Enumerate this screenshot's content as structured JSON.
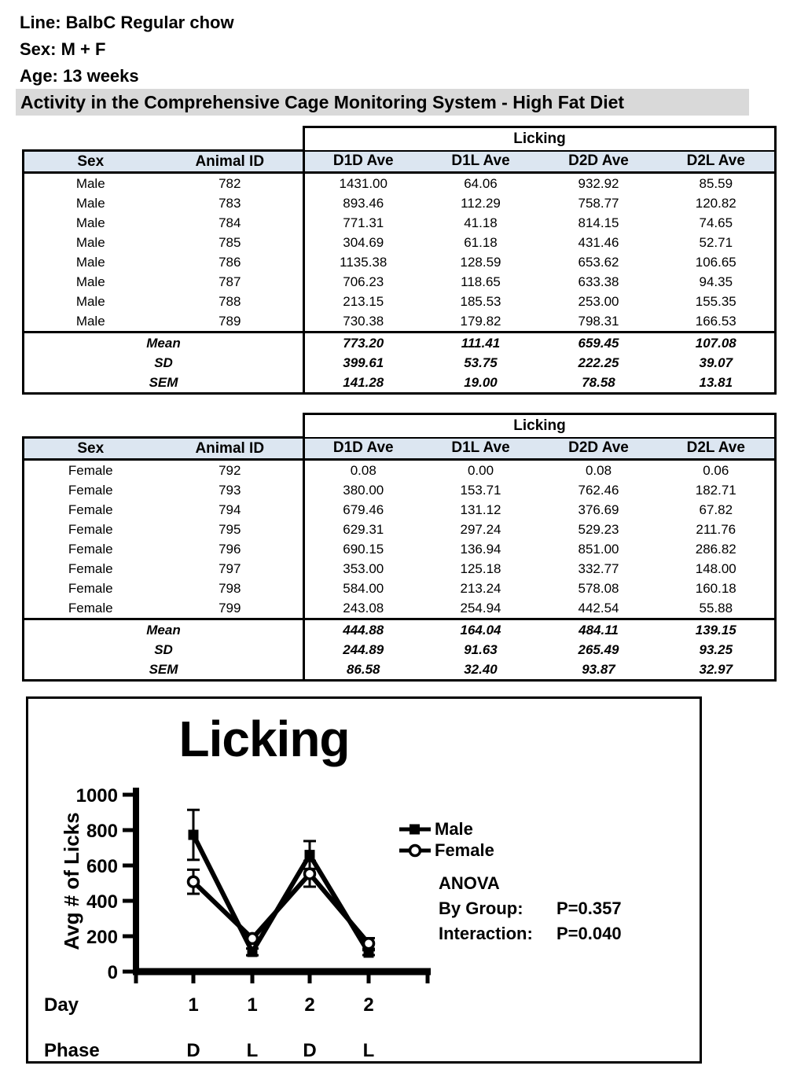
{
  "page": {
    "line_info": "Line: BalbC Regular chow",
    "sex_info": "Sex: M + F",
    "age_info": "Age: 13 weeks",
    "banner": "Activity in the Comprehensive Cage Monitoring System - High Fat Diet"
  },
  "colors": {
    "table_header_bg": "#dce6f1",
    "banner_bg": "#d9d9d9",
    "ink": "#000000"
  },
  "tables": [
    {
      "group_header": "Licking",
      "columns": [
        "Sex",
        "Animal ID",
        "D1D Ave",
        "D1L Ave",
        "D2D Ave",
        "D2L Ave"
      ],
      "rows": [
        [
          "Male",
          "782",
          "1431.00",
          "64.06",
          "932.92",
          "85.59"
        ],
        [
          "Male",
          "783",
          "893.46",
          "112.29",
          "758.77",
          "120.82"
        ],
        [
          "Male",
          "784",
          "771.31",
          "41.18",
          "814.15",
          "74.65"
        ],
        [
          "Male",
          "785",
          "304.69",
          "61.18",
          "431.46",
          "52.71"
        ],
        [
          "Male",
          "786",
          "1135.38",
          "128.59",
          "653.62",
          "106.65"
        ],
        [
          "Male",
          "787",
          "706.23",
          "118.65",
          "633.38",
          "94.35"
        ],
        [
          "Male",
          "788",
          "213.15",
          "185.53",
          "253.00",
          "155.35"
        ],
        [
          "Male",
          "789",
          "730.38",
          "179.82",
          "798.31",
          "166.53"
        ]
      ],
      "stats": [
        {
          "label": "Mean",
          "values": [
            "773.20",
            "111.41",
            "659.45",
            "107.08"
          ]
        },
        {
          "label": "SD",
          "values": [
            "399.61",
            "53.75",
            "222.25",
            "39.07"
          ]
        },
        {
          "label": "SEM",
          "values": [
            "141.28",
            "19.00",
            "78.58",
            "13.81"
          ]
        }
      ]
    },
    {
      "group_header": "Licking",
      "columns": [
        "Sex",
        "Animal ID",
        "D1D Ave",
        "D1L Ave",
        "D2D Ave",
        "D2L Ave"
      ],
      "rows": [
        [
          "Female",
          "792",
          "0.08",
          "0.00",
          "0.08",
          "0.06"
        ],
        [
          "Female",
          "793",
          "380.00",
          "153.71",
          "762.46",
          "182.71"
        ],
        [
          "Female",
          "794",
          "679.46",
          "131.12",
          "376.69",
          "67.82"
        ],
        [
          "Female",
          "795",
          "629.31",
          "297.24",
          "529.23",
          "211.76"
        ],
        [
          "Female",
          "796",
          "690.15",
          "136.94",
          "851.00",
          "286.82"
        ],
        [
          "Female",
          "797",
          "353.00",
          "125.18",
          "332.77",
          "148.00"
        ],
        [
          "Female",
          "798",
          "584.00",
          "213.24",
          "578.08",
          "160.18"
        ],
        [
          "Female",
          "799",
          "243.08",
          "254.94",
          "442.54",
          "55.88"
        ]
      ],
      "stats": [
        {
          "label": "Mean",
          "values": [
            "444.88",
            "164.04",
            "484.11",
            "139.15"
          ]
        },
        {
          "label": "SD",
          "values": [
            "244.89",
            "91.63",
            "265.49",
            "93.25"
          ]
        },
        {
          "label": "SEM",
          "values": [
            "86.58",
            "32.40",
            "93.87",
            "32.97"
          ]
        }
      ]
    }
  ],
  "chart_data": {
    "type": "line",
    "title": "Licking",
    "ylabel": "Avg # of Licks",
    "ylim": [
      0,
      1000
    ],
    "yticks": [
      0,
      200,
      400,
      600,
      800,
      1000
    ],
    "x_row_labels": [
      "Day",
      "Phase"
    ],
    "x_categories": [
      {
        "day": "1",
        "phase": "D"
      },
      {
        "day": "1",
        "phase": "L"
      },
      {
        "day": "2",
        "phase": "D"
      },
      {
        "day": "2",
        "phase": "L"
      }
    ],
    "grid": false,
    "legend_position": "right",
    "series": [
      {
        "name": "Male",
        "marker": "filled-square",
        "values": [
          773.2,
          111.41,
          659.45,
          107.08
        ],
        "sem": [
          141.28,
          19.0,
          78.58,
          13.81
        ]
      },
      {
        "name": "Female",
        "marker": "open-circle",
        "values": [
          508,
          187,
          553,
          159
        ],
        "sem": [
          68,
          26,
          73,
          30
        ]
      }
    ],
    "annotations": {
      "title": "ANOVA",
      "rows": [
        {
          "label": "By Group:",
          "value": "P=0.357"
        },
        {
          "label": "Interaction:",
          "value": "P=0.040"
        }
      ]
    }
  }
}
